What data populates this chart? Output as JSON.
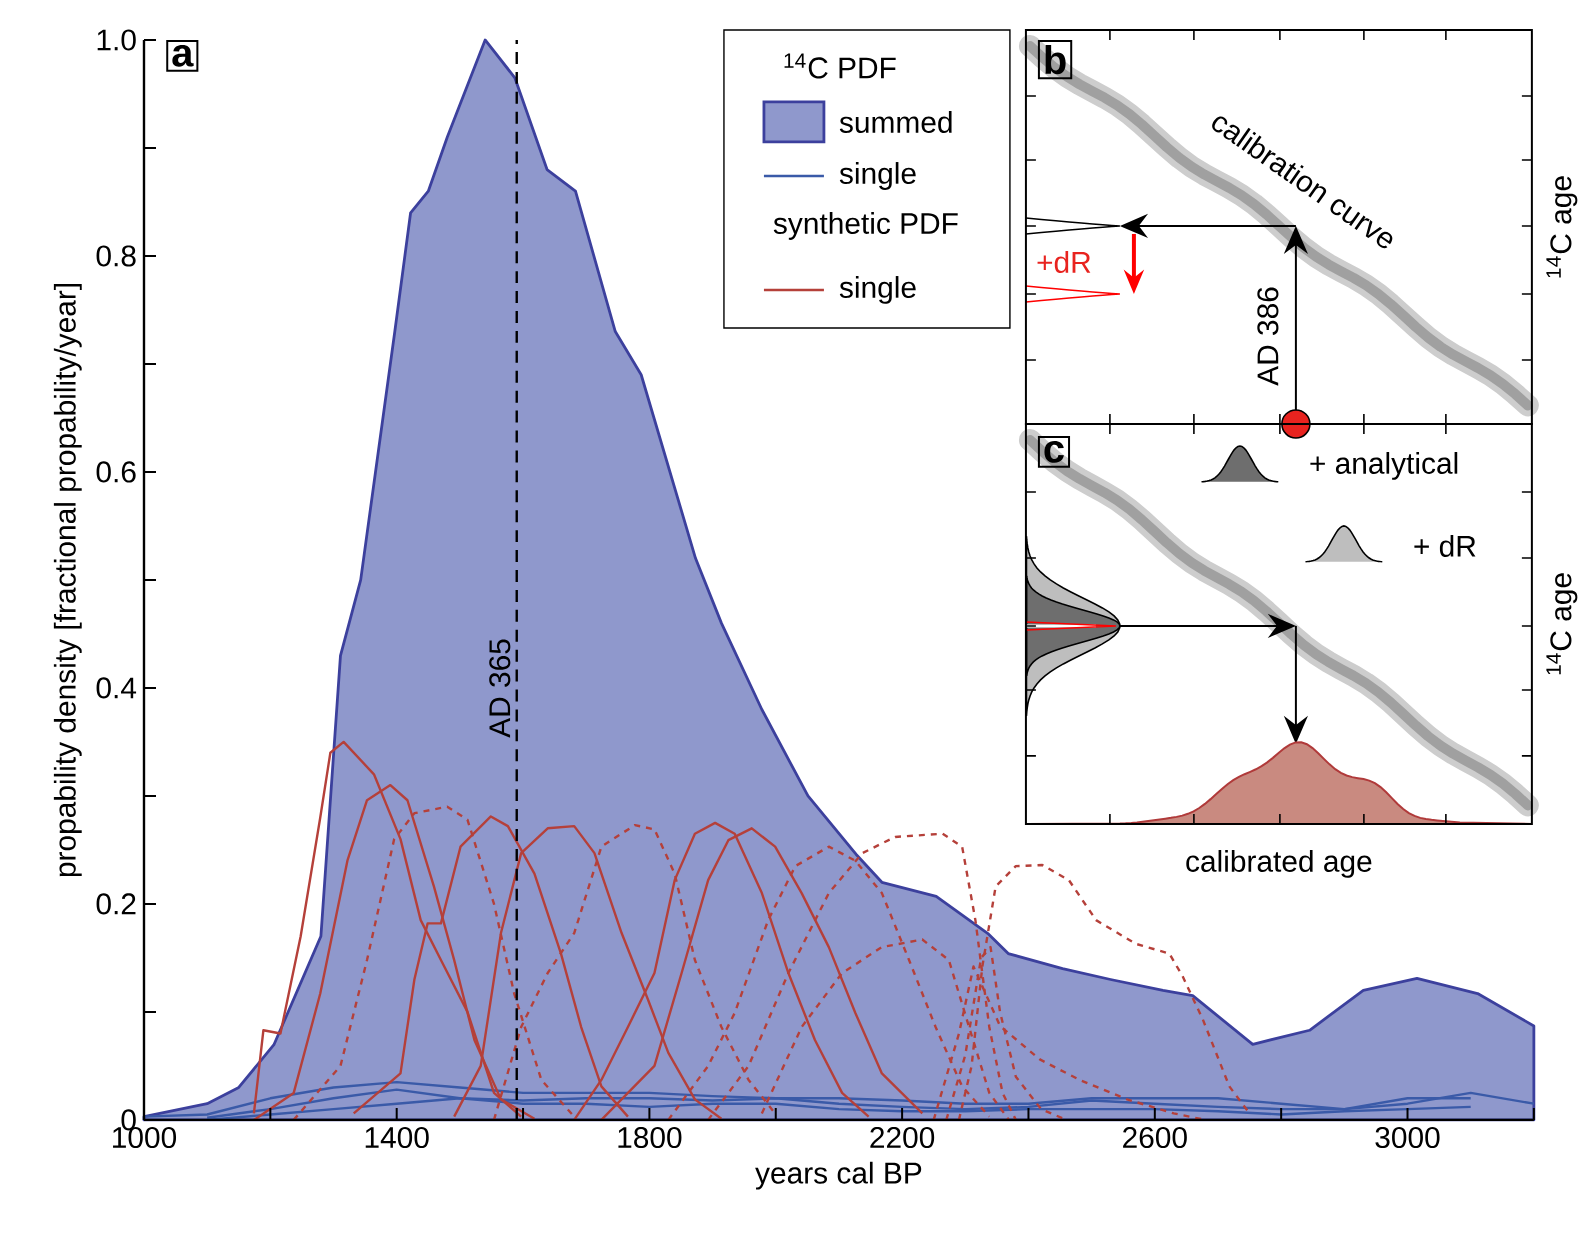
{
  "chart_data": [
    {
      "type": "area",
      "xlabel": "years cal BP",
      "ylabel": "propability density [fractional propability/year]",
      "xlim": [
        1000,
        3200
      ],
      "ylim": [
        0,
        1.0
      ],
      "xticks": [
        1000,
        {
          "value": 1200,
          "label": null
        },
        1400,
        {
          "value": 1600,
          "label": null
        },
        1800,
        {
          "value": 2000,
          "label": null
        },
        2200,
        {
          "value": 2400,
          "label": null
        },
        2600,
        {
          "value": 2800,
          "label": null
        },
        3000,
        {
          "value": 3200,
          "label": null
        }
      ],
      "yticks": [
        0,
        {
          "value": 0.1,
          "label": null
        },
        0.2,
        {
          "value": 0.3,
          "label": null
        },
        0.4,
        {
          "value": 0.5,
          "label": null
        },
        0.6,
        {
          "value": 0.7,
          "label": null
        },
        0.8,
        {
          "value": 0.9,
          "label": null
        },
        {
          "value": 1.0,
          "label": "1.0"
        }
      ],
      "legend": "top",
      "legend_title": "$^{14}$C PDF",
      "annotations": [
        "a",
        "synthetic PDF"
      ],
      "ref_lines": [
        {
          "axis": "x",
          "value": 1590,
          "label": "AD 365",
          "color": "#000000",
          "line_style": "dashed"
        }
      ],
      "series": [
        {
          "type": "area",
          "name": "summed",
          "color": "#8f98cc",
          "x": [
            1000,
            1100,
            1150,
            1206,
            1280,
            1311,
            1343,
            1397,
            1422,
            1450,
            1480,
            1540,
            1587,
            1638,
            1683,
            1746,
            1787,
            1873,
            1914,
            1978,
            2051,
            2127,
            2168,
            2254,
            2337,
            2368,
            2454,
            2530,
            2613,
            2660,
            2755,
            2845,
            2930,
            3015,
            3111,
            3200
          ],
          "values": [
            0.003,
            0.015,
            0.03,
            0.07,
            0.17,
            0.43,
            0.5,
            0.73,
            0.84,
            0.86,
            0.91,
            1.0,
            0.965,
            0.88,
            0.86,
            0.73,
            0.69,
            0.52,
            0.46,
            0.38,
            0.3,
            0.246,
            0.22,
            0.207,
            0.172,
            0.154,
            0.14,
            0.13,
            0.12,
            0.115,
            0.07,
            0.083,
            0.12,
            0.131,
            0.117,
            0.087
          ]
        },
        {
          "type": "line",
          "name": "single",
          "color": "#3a5aa8",
          "line_style": "solid",
          "x": [
            1000,
            1100,
            1200,
            1300,
            1400,
            1500,
            1600,
            1700,
            1800,
            1900,
            2000,
            2100,
            2200,
            2300,
            2400,
            2500,
            2600,
            2700,
            2800,
            2900,
            3000,
            3100
          ],
          "values": [
            0.003,
            0.005,
            0.02,
            0.03,
            0.035,
            0.03,
            0.025,
            0.025,
            0.025,
            0.022,
            0.02,
            0.02,
            0.018,
            0.015,
            0.015,
            0.02,
            0.02,
            0.02,
            0.015,
            0.01,
            0.02,
            0.02
          ]
        },
        {
          "type": "line",
          "color": "#3a5aa8",
          "line_style": "solid",
          "x": [
            1100,
            1200,
            1300,
            1400,
            1500,
            1600,
            1700,
            1800,
            1900,
            2000,
            2100,
            2200,
            2300,
            2400,
            2500,
            2600,
            2700,
            2800,
            2900,
            3000,
            3100,
            3200
          ],
          "values": [
            0.002,
            0.01,
            0.02,
            0.028,
            0.02,
            0.018,
            0.02,
            0.02,
            0.018,
            0.02,
            0.015,
            0.012,
            0.01,
            0.012,
            0.018,
            0.015,
            0.012,
            0.01,
            0.01,
            0.015,
            0.025,
            0.015
          ]
        },
        {
          "type": "line",
          "color": "#3a5aa8",
          "line_style": "solid",
          "x": [
            1100,
            1200,
            1300,
            1400,
            1500,
            1600,
            1700,
            1800,
            1900,
            2000,
            2100,
            2200,
            2300,
            2400,
            2500,
            2600,
            2700,
            2800,
            2900,
            3000,
            3100
          ],
          "values": [
            0,
            0.005,
            0.01,
            0.015,
            0.02,
            0.015,
            0.015,
            0.012,
            0.015,
            0.015,
            0.01,
            0.008,
            0.008,
            0.01,
            0.01,
            0.01,
            0.008,
            0.005,
            0.008,
            0.01,
            0.012
          ]
        },
        {
          "type": "line",
          "name": "single",
          "color": "#b5403a",
          "line_style": "solid",
          "x": [
            1174,
            1189,
            1216,
            1248,
            1279,
            1295,
            1316,
            1364,
            1406,
            1438,
            1470,
            1512,
            1554,
            1597
          ],
          "values": [
            0.006,
            0.083,
            0.08,
            0.17,
            0.28,
            0.34,
            0.35,
            0.32,
            0.26,
            0.185,
            0.148,
            0.1,
            0.025,
            0.003
          ]
        },
        {
          "type": "line",
          "color": "#b5403a",
          "line_style": "solid",
          "x": [
            1174,
            1237,
            1279,
            1322,
            1353,
            1390,
            1417,
            1459,
            1491,
            1523,
            1565,
            1618
          ],
          "values": [
            0,
            0.025,
            0.117,
            0.24,
            0.296,
            0.31,
            0.296,
            0.216,
            0.148,
            0.074,
            0.019,
            0.001
          ]
        },
        {
          "type": "line",
          "color": "#b5403a",
          "line_style": "dashed",
          "x": [
            1237,
            1311,
            1353,
            1396,
            1428,
            1480,
            1512,
            1554,
            1586,
            1629,
            1681
          ],
          "values": [
            0,
            0.05,
            0.148,
            0.26,
            0.284,
            0.29,
            0.278,
            0.2,
            0.117,
            0.037,
            0.003
          ]
        },
        {
          "type": "line",
          "color": "#b5403a",
          "line_style": "solid",
          "x": [
            1332,
            1406,
            1428,
            1449,
            1470,
            1501,
            1549,
            1576,
            1618,
            1660,
            1692,
            1724,
            1766
          ],
          "values": [
            0.006,
            0.043,
            0.13,
            0.182,
            0.182,
            0.253,
            0.281,
            0.272,
            0.228,
            0.154,
            0.086,
            0.031,
            0.003
          ]
        },
        {
          "type": "line",
          "color": "#b5403a",
          "line_style": "solid",
          "x": [
            1491,
            1533,
            1565,
            1597,
            1639,
            1681,
            1713,
            1756,
            1798,
            1830,
            1872,
            1914
          ],
          "values": [
            0.003,
            0.05,
            0.173,
            0.247,
            0.27,
            0.272,
            0.247,
            0.173,
            0.111,
            0.062,
            0.019,
            0.001
          ]
        },
        {
          "type": "line",
          "color": "#b5403a",
          "line_style": "dashed",
          "x": [
            1554,
            1597,
            1639,
            1681,
            1724,
            1777,
            1808,
            1840,
            1872,
            1914,
            1957,
            1999
          ],
          "values": [
            0,
            0.086,
            0.136,
            0.173,
            0.253,
            0.273,
            0.269,
            0.228,
            0.148,
            0.086,
            0.037,
            0.006
          ]
        },
        {
          "type": "line",
          "color": "#b5403a",
          "line_style": "solid",
          "x": [
            1681,
            1724,
            1766,
            1808,
            1840,
            1872,
            1904,
            1935,
            1978,
            2020,
            2062,
            2105,
            2147
          ],
          "values": [
            0,
            0.037,
            0.086,
            0.136,
            0.222,
            0.265,
            0.275,
            0.265,
            0.21,
            0.136,
            0.074,
            0.025,
            0.003
          ]
        },
        {
          "type": "line",
          "color": "#b5403a",
          "line_style": "solid",
          "x": [
            1724,
            1808,
            1851,
            1893,
            1925,
            1962,
            1999,
            2041,
            2084,
            2126,
            2168,
            2232
          ],
          "values": [
            0,
            0.05,
            0.136,
            0.222,
            0.259,
            0.27,
            0.253,
            0.21,
            0.16,
            0.099,
            0.043,
            0.006
          ]
        },
        {
          "type": "line",
          "color": "#b5403a",
          "line_style": "dashed",
          "x": [
            1830,
            1893,
            1935,
            1988,
            2031,
            2084,
            2126,
            2168,
            2211,
            2253,
            2295,
            2338
          ],
          "values": [
            0,
            0.05,
            0.099,
            0.185,
            0.235,
            0.253,
            0.24,
            0.21,
            0.148,
            0.086,
            0.031,
            0.003
          ]
        },
        {
          "type": "line",
          "color": "#b5403a",
          "line_style": "dashed",
          "x": [
            1893,
            1957,
            2020,
            2084,
            2137,
            2189,
            2264,
            2295,
            2316,
            2338,
            2359,
            2380
          ],
          "values": [
            0,
            0.05,
            0.136,
            0.21,
            0.247,
            0.262,
            0.265,
            0.253,
            0.185,
            0.086,
            0.025,
            0
          ]
        },
        {
          "type": "line",
          "color": "#b5403a",
          "line_style": "dashed",
          "x": [
            1978,
            2041,
            2105,
            2168,
            2232,
            2274,
            2306,
            2338,
            2369
          ],
          "values": [
            0.006,
            0.086,
            0.136,
            0.16,
            0.167,
            0.148,
            0.086,
            0.025,
            0
          ]
        },
        {
          "type": "line",
          "color": "#b5403a",
          "line_style": "dashed",
          "x": [
            2290,
            2310,
            2327,
            2348,
            2380,
            2422,
            2464,
            2507,
            2570,
            2623,
            2644,
            2676,
            2718,
            2750
          ],
          "values": [
            0,
            0.05,
            0.142,
            0.216,
            0.235,
            0.236,
            0.222,
            0.185,
            0.163,
            0.154,
            0.133,
            0.093,
            0.031,
            0.006
          ]
        },
        {
          "type": "line",
          "color": "#b5403a",
          "line_style": "dashed",
          "x": [
            2270,
            2300,
            2325,
            2340,
            2355,
            2380,
            2420,
            2460
          ],
          "values": [
            0,
            0.06,
            0.15,
            0.16,
            0.1,
            0.04,
            0.01,
            0
          ]
        },
        {
          "type": "line",
          "color": "#b5403a",
          "line_style": "dashed",
          "x": [
            2250,
            2290,
            2313,
            2355,
            2418,
            2481,
            2556,
            2630,
            2680
          ],
          "values": [
            0,
            0.08,
            0.142,
            0.087,
            0.056,
            0.037,
            0.019,
            0.006,
            0
          ]
        }
      ]
    },
    {
      "type": "other",
      "ylabel": "$^{14}$C age",
      "annotations": [
        "b",
        "calibration curve",
        "+dR",
        "AD 386"
      ]
    },
    {
      "type": "other",
      "xlabel": "calibrated age",
      "ylabel": "$^{14}$C age",
      "annotations": [
        "c",
        "+ analytical",
        "+ dR"
      ]
    }
  ]
}
